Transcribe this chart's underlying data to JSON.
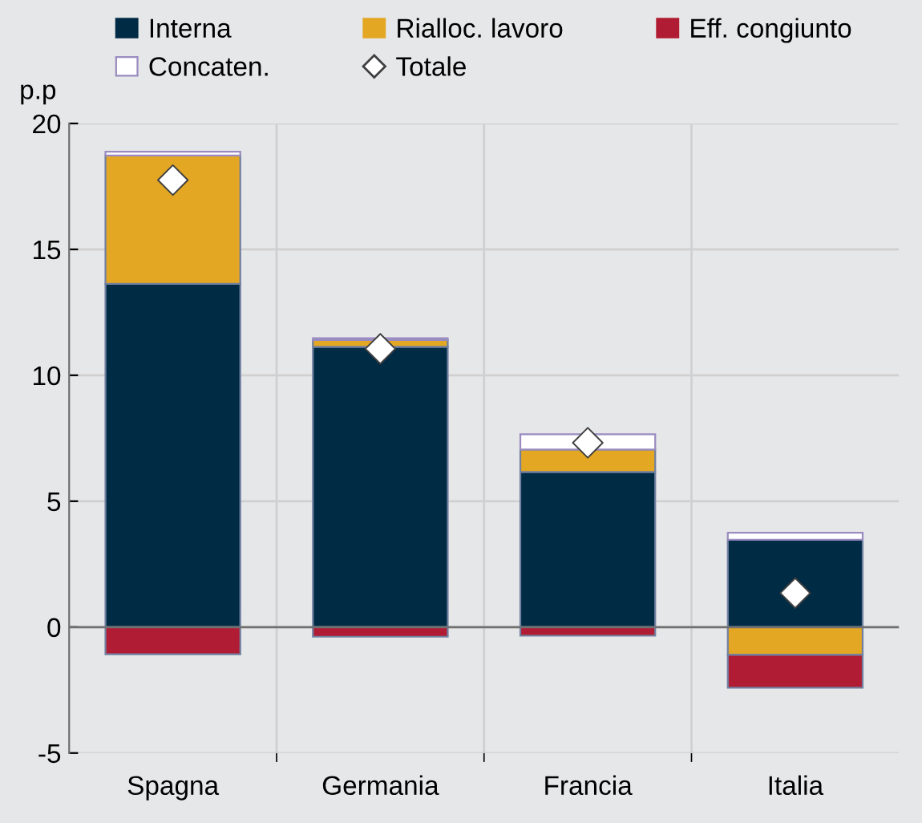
{
  "chart_data": {
    "type": "bar",
    "stacked": true,
    "ylabel": "p.p",
    "categories": [
      "Spagna",
      "Germania",
      "Francia",
      "Italia"
    ],
    "series": [
      {
        "name": "Interna",
        "color": "#002b45",
        "values": [
          13.63,
          11.13,
          6.16,
          3.47
        ]
      },
      {
        "name": "Rialloc. lavoro",
        "color": "#e3a724",
        "values": [
          5.1,
          0.27,
          0.89,
          -1.1
        ]
      },
      {
        "name": "Eff. congiunto",
        "color": "#b01c33",
        "values": [
          -1.08,
          -0.38,
          -0.34,
          -1.31
        ]
      },
      {
        "name": "Concaten.",
        "color": "#ffffff",
        "values": [
          0.15,
          0.07,
          0.61,
          0.28
        ]
      },
      {
        "name": "Totale",
        "type": "scatter",
        "marker": "diamond",
        "color": "#ffffff",
        "x": [
          "Spagna",
          "Germania",
          "Francia",
          "Italia"
        ],
        "values": [
          17.75,
          11.05,
          7.32,
          1.35
        ]
      }
    ],
    "ylim": [
      -5,
      20
    ],
    "yticks": [
      -5,
      0,
      5,
      10,
      15,
      20
    ],
    "grid": true,
    "legend": "top"
  }
}
